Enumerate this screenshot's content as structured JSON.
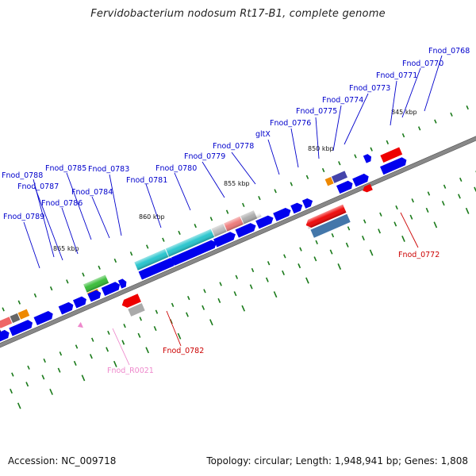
{
  "title": "Fervidobacterium nodosum Rt17-B1, complete genome",
  "footer": {
    "accession": "Accession: NC_009718",
    "summary": "Topology: circular; Length: 1,948,941 bp; Genes: 1,808"
  },
  "colors": {
    "backbone": "#808080",
    "cds_forward": "#0000ee",
    "cds_reverse": "#ee0000",
    "label_cds": "#0000cc",
    "label_reverse": "#cc0000",
    "label_rna": "#ee88cc",
    "tick": "#1a7a1a"
  },
  "kbp_ticks": [
    "845 kbp",
    "850 kbp",
    "855 kbp",
    "860 kbp",
    "865 kbp"
  ],
  "gene_labels_top": [
    "Fnod_0768",
    "Fnod_0770",
    "Fnod_0771",
    "Fnod_0773",
    "Fnod_0774",
    "Fnod_0775",
    "Fnod_0776",
    "gltX",
    "Fnod_0778",
    "Fnod_0779",
    "Fnod_0780",
    "Fnod_0781",
    "Fnod_0783",
    "Fnod_0784",
    "Fnod_0785",
    "Fnod_0786",
    "Fnod_0787",
    "Fnod_0788",
    "Fnod_0789"
  ],
  "gene_labels_bottom": [
    "Fnod_0772",
    "Fnod_0782",
    "Fnod_R0021"
  ]
}
